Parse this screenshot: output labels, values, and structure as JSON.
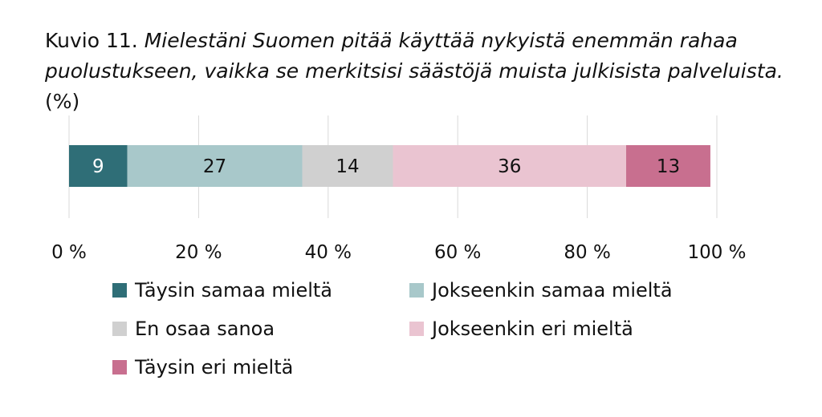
{
  "title": {
    "lead": "Kuvio 11.",
    "question": "Mielestäni Suomen pitää käyttää nykyistä enemmän rahaa puolustukseen, vaikka se merkitsisi säästöjä muista julkisista palveluista.",
    "unit": "(%)"
  },
  "chart_data": {
    "type": "bar",
    "orientation": "horizontal",
    "stacked": true,
    "categories": [
      ""
    ],
    "series": [
      {
        "name": "Täysin samaa mieltä",
        "values": [
          9
        ],
        "color": "#2f6e77",
        "label_color": "#ffffff"
      },
      {
        "name": "Jokseenkin samaa mieltä",
        "values": [
          27
        ],
        "color": "#a8c8ca",
        "label_color": "#111111"
      },
      {
        "name": "En osaa sanoa",
        "values": [
          14
        ],
        "color": "#d0d0d0",
        "label_color": "#111111"
      },
      {
        "name": "Jokseenkin eri mieltä",
        "values": [
          36
        ],
        "color": "#eac4d1",
        "label_color": "#111111"
      },
      {
        "name": "Täysin eri mieltä",
        "values": [
          13
        ],
        "color": "#c86f8f",
        "label_color": "#111111"
      }
    ],
    "xlim": [
      0,
      100
    ],
    "x_ticks": [
      0,
      20,
      40,
      60,
      80,
      100
    ],
    "x_tick_labels": [
      "0 %",
      "20 %",
      "40 %",
      "60 %",
      "80 %",
      "100 %"
    ],
    "grid": true,
    "legend_position": "bottom"
  }
}
